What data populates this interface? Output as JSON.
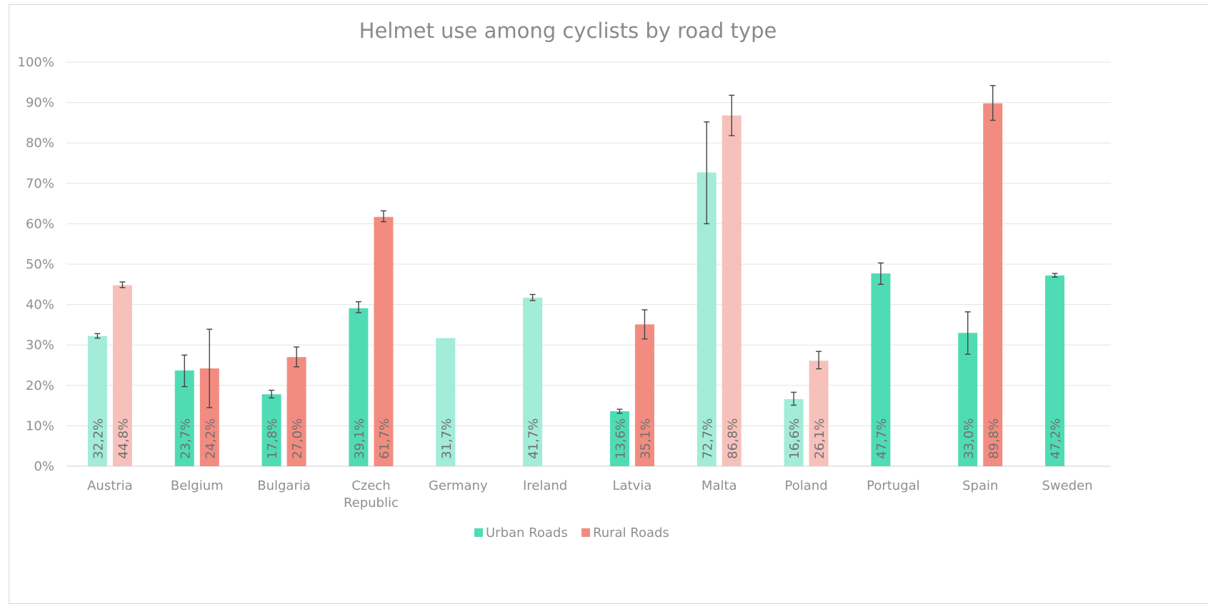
{
  "chart_data": {
    "type": "bar",
    "title": "Helmet use among cyclists by road type",
    "xlabel": "",
    "ylabel": "",
    "ylim": [
      0,
      1
    ],
    "yticks": [
      "0%",
      "10%",
      "20%",
      "30%",
      "40%",
      "50%",
      "60%",
      "70%",
      "80%",
      "90%",
      "100%"
    ],
    "grid": true,
    "legend_position": "bottom",
    "categories": [
      "Austria",
      "Belgium",
      "Bulgaria",
      "Czech Republic",
      "Germany",
      "Ireland",
      "Latvia",
      "Malta",
      "Poland",
      "Portugal",
      "Spain",
      "Sweden"
    ],
    "category_lines": [
      [
        "Austria"
      ],
      [
        "Belgium"
      ],
      [
        "Bulgaria"
      ],
      [
        "Czech",
        "Republic"
      ],
      [
        "Germany"
      ],
      [
        "Ireland"
      ],
      [
        "Latvia"
      ],
      [
        "Malta"
      ],
      [
        "Poland"
      ],
      [
        "Portugal"
      ],
      [
        "Spain"
      ],
      [
        "Sweden"
      ]
    ],
    "series": [
      {
        "name": "Urban Roads",
        "color": "#4fdcb5",
        "light_color": "#a2ecd8",
        "values": [
          0.322,
          0.237,
          0.178,
          0.391,
          0.317,
          0.417,
          0.136,
          0.727,
          0.166,
          0.477,
          0.33,
          0.472
        ],
        "labels": [
          "32,2%",
          "23,7%",
          "17,8%",
          "39,1%",
          "31,7%",
          "41,7%",
          "13,6%",
          "72,7%",
          "16,6%",
          "47,7%",
          "33,0%",
          "47,2%"
        ],
        "light": [
          true,
          false,
          false,
          false,
          true,
          true,
          false,
          true,
          true,
          false,
          false,
          false
        ],
        "err_low": [
          0.317,
          0.197,
          0.169,
          0.38,
          null,
          0.41,
          0.131,
          0.6,
          0.151,
          0.45,
          0.277,
          0.468
        ],
        "err_high": [
          0.328,
          0.275,
          0.188,
          0.407,
          null,
          0.425,
          0.141,
          0.852,
          0.183,
          0.503,
          0.382,
          0.477
        ]
      },
      {
        "name": "Rural Roads",
        "color": "#f28c80",
        "light_color": "#f7c1bb",
        "values": [
          0.448,
          0.242,
          0.27,
          0.617,
          null,
          null,
          0.351,
          0.868,
          0.261,
          null,
          0.898,
          null
        ],
        "labels": [
          "44,8%",
          "24,2%",
          "27,0%",
          "61,7%",
          null,
          null,
          "35,1%",
          "86,8%",
          "26,1%",
          null,
          "89,8%",
          null
        ],
        "light": [
          true,
          false,
          false,
          false,
          false,
          false,
          false,
          true,
          true,
          false,
          false,
          false
        ],
        "err_low": [
          0.442,
          0.145,
          0.246,
          0.605,
          null,
          null,
          0.315,
          0.818,
          0.241,
          null,
          0.856,
          null
        ],
        "err_high": [
          0.456,
          0.339,
          0.295,
          0.632,
          null,
          null,
          0.387,
          0.918,
          0.284,
          null,
          0.942,
          null
        ]
      }
    ]
  }
}
